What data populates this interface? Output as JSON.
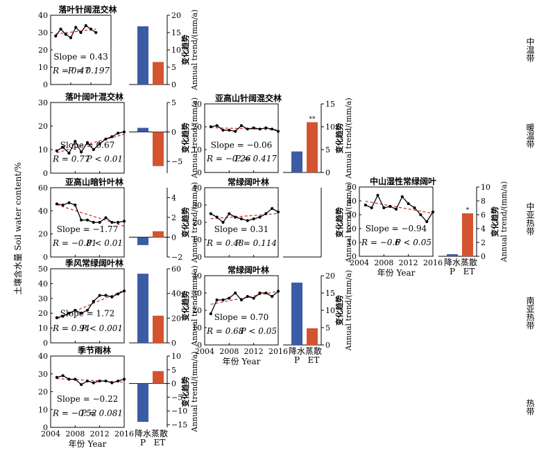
{
  "figure": {
    "y_axis_label": "土壤含水量 Soil water content/%",
    "x_axis_label": "年份 Year",
    "trend_axis_label_cn": "变化趋势",
    "trend_axis_label_en": "Annual trend/(mm/a)",
    "p_label_cn": "降水",
    "p_label_en": "P",
    "et_label_cn": "蒸散",
    "et_label_en": "ET",
    "zones": [
      "中温带",
      "暖温带",
      "中亚热带",
      "南亚热带",
      "热带"
    ],
    "colors": {
      "precip": "#3b5ba5",
      "et": "#d4542f",
      "fit": "#cc2222",
      "line": "#000000"
    }
  },
  "chart_data": [
    {
      "id": "p1",
      "type": "line",
      "title": "落叶针阔混交林",
      "x": [
        2005,
        2006,
        2007,
        2008,
        2009,
        2010,
        2011,
        2012,
        2013
      ],
      "y": [
        28,
        32,
        29,
        27,
        33,
        30,
        34,
        32,
        30
      ],
      "ylim": [
        0,
        40
      ],
      "yticks": [
        0,
        10,
        20,
        30,
        40
      ],
      "slope": "Slope = 0.43",
      "r": "R = 0.47",
      "p": "P = 0.197",
      "bars": {
        "type": "bar",
        "categories": [
          "P",
          "ET"
        ],
        "values": [
          16.8,
          6.5
        ],
        "ylim": [
          0,
          20
        ],
        "yticks": [
          0,
          5,
          10,
          15,
          20
        ],
        "sig": [
          "",
          ""
        ]
      }
    },
    {
      "id": "p2",
      "type": "line",
      "title": "落叶阔叶混交林",
      "x": [
        2005,
        2006,
        2007,
        2008,
        2009,
        2010,
        2011,
        2012,
        2013,
        2014,
        2015,
        2016
      ],
      "y": [
        9.5,
        11,
        8.5,
        13.5,
        9,
        13,
        10,
        12.5,
        14.5,
        15.5,
        17,
        17.5
      ],
      "ylim": [
        0,
        30
      ],
      "yticks": [
        0,
        10,
        20,
        30
      ],
      "slope": "Slope = 0.67",
      "r": "R = 0.77",
      "p": "P < 0.01",
      "bars": {
        "type": "bar",
        "categories": [
          "P",
          "ET"
        ],
        "values": [
          0.7,
          -5.8
        ],
        "ylim": [
          -7,
          5
        ],
        "yticks": [
          -5,
          0,
          5
        ],
        "sig": [
          "",
          ""
        ]
      }
    },
    {
      "id": "p3",
      "type": "line",
      "title": "亚高山暗针叶林",
      "x": [
        2005,
        2006,
        2007,
        2008,
        2009,
        2010,
        2011,
        2012,
        2013,
        2014,
        2015,
        2016
      ],
      "y": [
        46,
        45,
        47,
        45,
        32,
        32,
        30,
        30,
        34,
        30,
        30,
        31
      ],
      "ylim": [
        0,
        60
      ],
      "yticks": [
        0,
        20,
        40,
        60
      ],
      "slope": "Slope = −1.77",
      "r": "R = −0.81",
      "p": "P < 0.01",
      "bars": {
        "type": "bar",
        "categories": [
          "P",
          "ET"
        ],
        "values": [
          -0.8,
          0.6
        ],
        "ylim": [
          -2,
          5
        ],
        "yticks": [
          -2,
          0,
          2,
          4
        ],
        "sig": [
          "",
          ""
        ]
      }
    },
    {
      "id": "p4",
      "type": "line",
      "title": "季风常绿阔叶林",
      "x": [
        2005,
        2006,
        2007,
        2008,
        2009,
        2010,
        2011,
        2012,
        2013,
        2014,
        2015,
        2016
      ],
      "y": [
        17,
        18,
        20,
        22,
        20,
        22,
        28,
        32,
        32,
        31,
        33,
        35
      ],
      "ylim": [
        0,
        50
      ],
      "yticks": [
        0,
        10,
        20,
        30,
        40,
        50
      ],
      "slope": "Slope = 1.72",
      "r": "R = 0.94",
      "p": "P < 0.001",
      "bars": {
        "type": "bar",
        "categories": [
          "P",
          "ET"
        ],
        "values": [
          56,
          22
        ],
        "ylim": [
          0,
          60
        ],
        "yticks": [
          0,
          20,
          40,
          60
        ],
        "sig": [
          "",
          ""
        ]
      }
    },
    {
      "id": "p5",
      "type": "line",
      "title": "季节雨林",
      "x": [
        2005,
        2006,
        2007,
        2008,
        2009,
        2010,
        2011,
        2012,
        2013,
        2014,
        2015,
        2016
      ],
      "y": [
        28,
        29,
        27,
        27,
        24,
        26,
        25,
        26,
        26,
        25,
        26,
        27
      ],
      "ylim": [
        0,
        40
      ],
      "yticks": [
        0,
        10,
        20,
        30,
        40
      ],
      "slope": "Slope = −0.22",
      "r": "R = −0.52",
      "p": "P = 0.081",
      "bars": {
        "type": "bar",
        "categories": [
          "P",
          "ET"
        ],
        "values": [
          -14,
          4.5
        ],
        "ylim": [
          -16,
          10
        ],
        "yticks": [
          -15,
          -10,
          -5,
          0,
          5,
          10
        ],
        "sig": [
          "",
          ""
        ]
      }
    },
    {
      "id": "p6",
      "type": "line",
      "title": "亚高山针阔混交林",
      "x": [
        2005,
        2006,
        2007,
        2008,
        2009,
        2010,
        2011,
        2012,
        2013,
        2014,
        2015,
        2016
      ],
      "y": [
        20,
        20.5,
        18.5,
        18.5,
        18,
        20.5,
        19,
        19.5,
        19,
        19.5,
        19,
        18
      ],
      "ylim": [
        0,
        30
      ],
      "yticks": [
        0,
        10,
        20,
        30
      ],
      "slope": "Slope = −0.06",
      "r": "R = −0.26",
      "p": "P = 0.417",
      "bars": {
        "type": "bar",
        "categories": [
          "P",
          "ET"
        ],
        "values": [
          4.6,
          11
        ],
        "ylim": [
          0,
          15
        ],
        "yticks": [
          0,
          5,
          10,
          15
        ],
        "sig": [
          "",
          "**"
        ]
      }
    },
    {
      "id": "p7",
      "type": "line",
      "title": "常绿阔叶林",
      "x": [
        2005,
        2006,
        2007,
        2008,
        2009,
        2010,
        2011,
        2012,
        2013,
        2014,
        2015,
        2016
      ],
      "y": [
        25,
        23,
        20,
        25,
        23,
        22,
        21,
        22,
        23,
        25,
        28,
        26
      ],
      "ylim": [
        0,
        40
      ],
      "yticks": [
        0,
        10,
        20,
        30,
        40
      ],
      "slope": "Slope = 0.31",
      "r": "R = 0.48",
      "p": "P = 0.114",
      "bars": {
        "type": "bar",
        "categories": [
          "P",
          "ET"
        ],
        "values": [
          0,
          0
        ],
        "ylim": [
          0,
          10
        ],
        "yticks": [],
        "sig": [
          "",
          ""
        ]
      }
    },
    {
      "id": "p8",
      "type": "line",
      "title": "常绿阔叶林",
      "x": [
        2005,
        2006,
        2007,
        2008,
        2009,
        2010,
        2011,
        2012,
        2013,
        2014,
        2015,
        2016
      ],
      "y": [
        18,
        26,
        26,
        27,
        30,
        26,
        28,
        27,
        30,
        30,
        28,
        31
      ],
      "ylim": [
        0,
        40
      ],
      "yticks": [
        0,
        10,
        20,
        30,
        40
      ],
      "slope": "Slope = 0.70",
      "r": "R = 0.68",
      "p": "P < 0.05",
      "bars": {
        "type": "bar",
        "categories": [
          "P",
          "ET"
        ],
        "values": [
          18,
          4.8
        ],
        "ylim": [
          0,
          20
        ],
        "yticks": [
          0,
          5,
          10,
          15,
          20
        ],
        "sig": [
          "",
          ""
        ]
      }
    },
    {
      "id": "p9",
      "type": "line",
      "title": "中山湿性常绿阔叶",
      "x": [
        2005,
        2006,
        2007,
        2008,
        2009,
        2010,
        2011,
        2012,
        2013,
        2014,
        2015,
        2016
      ],
      "y": [
        37,
        35,
        44,
        35,
        36,
        34,
        43,
        38,
        35,
        30,
        25,
        32
      ],
      "ylim": [
        0,
        50
      ],
      "yticks": [
        0,
        10,
        20,
        30,
        40,
        50
      ],
      "slope": "Slope = −0.94",
      "r": "R = −0.6",
      "p": "P < 0.05",
      "bars": {
        "type": "bar",
        "categories": [
          "P",
          "ET"
        ],
        "values": [
          0.3,
          6.2
        ],
        "ylim": [
          0,
          10
        ],
        "yticks": [
          0,
          2,
          4,
          6,
          8,
          10
        ],
        "sig": [
          "",
          "*"
        ]
      }
    }
  ]
}
